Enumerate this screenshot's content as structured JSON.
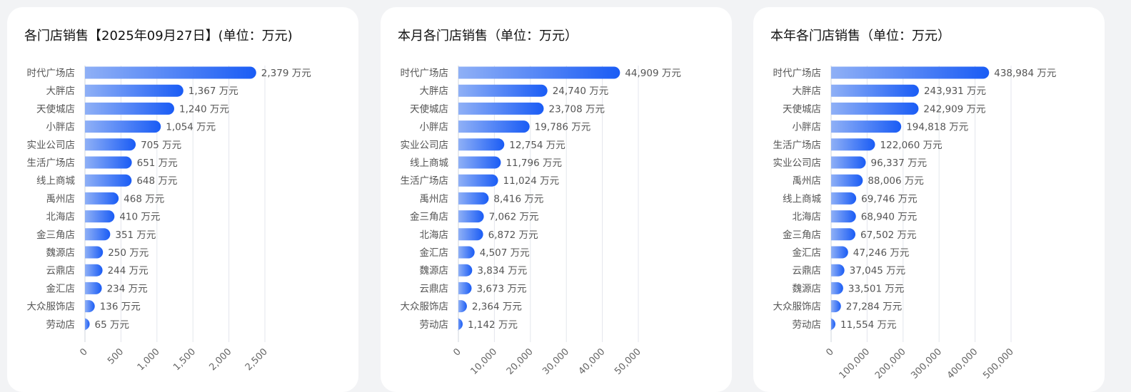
{
  "colors": {
    "bar_start": "#8fb0f6",
    "bar_end": "#1a5cf5"
  },
  "chart_data": [
    {
      "type": "bar",
      "orientation": "horizontal",
      "title": "各门店销售【2025年09月27日】(单位：万元)",
      "unit": "万元",
      "xlim": [
        0,
        2500
      ],
      "ticks": [
        "0",
        "500",
        "1,000",
        "1,500",
        "2,000",
        "2,500"
      ],
      "tick_values": [
        0,
        500,
        1000,
        1500,
        2000,
        2500
      ],
      "grid": true,
      "categories": [
        "时代广场店",
        "大胖店",
        "天使城店",
        "小胖店",
        "实业公司店",
        "生活广场店",
        "线上商城",
        "禹州店",
        "北海店",
        "金三角店",
        "魏源店",
        "云鼎店",
        "金汇店",
        "大众服饰店",
        "劳动店"
      ],
      "values": [
        2379,
        1367,
        1240,
        1054,
        705,
        651,
        648,
        468,
        410,
        351,
        250,
        244,
        234,
        136,
        65
      ],
      "value_labels": [
        "2,379 万元",
        "1,367 万元",
        "1,240 万元",
        "1,054 万元",
        "705 万元",
        "651 万元",
        "648 万元",
        "468 万元",
        "410 万元",
        "351 万元",
        "250 万元",
        "244 万元",
        "234 万元",
        "136 万元",
        "65 万元"
      ]
    },
    {
      "type": "bar",
      "orientation": "horizontal",
      "title": "本月各门店销售（单位：万元）",
      "unit": "万元",
      "xlim": [
        0,
        50000
      ],
      "ticks": [
        "0",
        "10,000",
        "20,000",
        "30,000",
        "40,000",
        "50,000"
      ],
      "tick_values": [
        0,
        10000,
        20000,
        30000,
        40000,
        50000
      ],
      "grid": true,
      "categories": [
        "时代广场店",
        "大胖店",
        "天使城店",
        "小胖店",
        "实业公司店",
        "线上商城",
        "生活广场店",
        "禹州店",
        "金三角店",
        "北海店",
        "金汇店",
        "魏源店",
        "云鼎店",
        "大众服饰店",
        "劳动店"
      ],
      "values": [
        44909,
        24740,
        23708,
        19786,
        12754,
        11796,
        11024,
        8416,
        7062,
        6872,
        4507,
        3834,
        3673,
        2364,
        1142
      ],
      "value_labels": [
        "44,909 万元",
        "24,740 万元",
        "23,708 万元",
        "19,786 万元",
        "12,754 万元",
        "11,796 万元",
        "11,024 万元",
        "8,416 万元",
        "7,062 万元",
        "6,872 万元",
        "4,507 万元",
        "3,834 万元",
        "3,673 万元",
        "2,364 万元",
        "1,142 万元"
      ]
    },
    {
      "type": "bar",
      "orientation": "horizontal",
      "title": "本年各门店销售（单位：万元）",
      "unit": "万元",
      "xlim": [
        0,
        500000
      ],
      "ticks": [
        "0",
        "100,000",
        "200,000",
        "300,000",
        "400,000",
        "500,000"
      ],
      "tick_values": [
        0,
        100000,
        200000,
        300000,
        400000,
        500000
      ],
      "grid": true,
      "categories": [
        "时代广场店",
        "大胖店",
        "天使城店",
        "小胖店",
        "生活广场店",
        "实业公司店",
        "禹州店",
        "线上商城",
        "北海店",
        "金三角店",
        "金汇店",
        "云鼎店",
        "魏源店",
        "大众服饰店",
        "劳动店"
      ],
      "values": [
        438984,
        243931,
        242909,
        194818,
        122060,
        96337,
        88006,
        69746,
        68940,
        67502,
        47246,
        37045,
        33501,
        27284,
        11554
      ],
      "value_labels": [
        "438,984 万元",
        "243,931 万元",
        "242,909 万元",
        "194,818 万元",
        "122,060 万元",
        "96,337 万元",
        "88,006 万元",
        "69,746 万元",
        "68,940 万元",
        "67,502 万元",
        "47,246 万元",
        "37,045 万元",
        "33,501 万元",
        "27,284 万元",
        "11,554 万元"
      ]
    }
  ]
}
